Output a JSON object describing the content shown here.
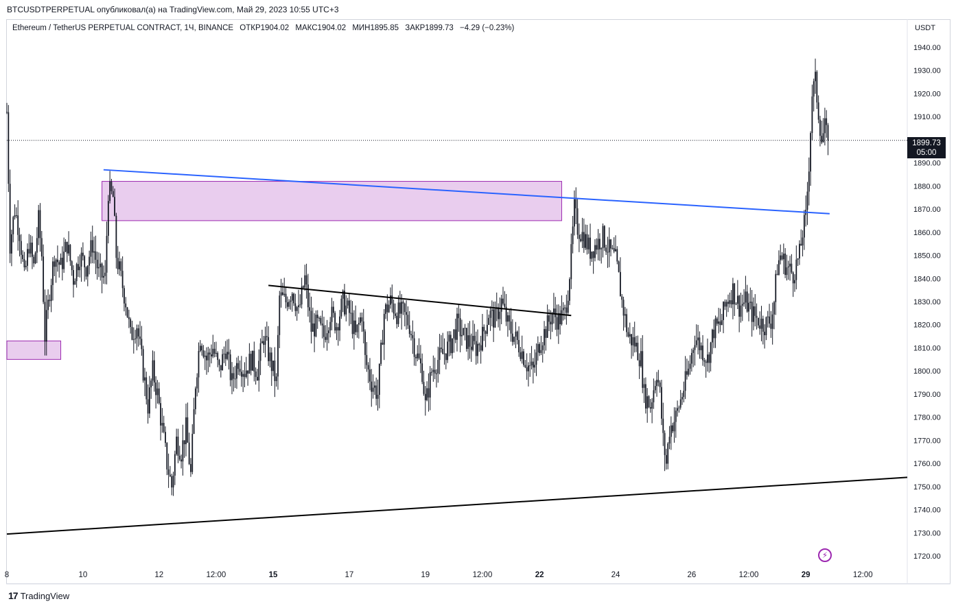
{
  "header": {
    "published": "BTCUSDTPERPETUAL опубликовал(а) на TradingView.com, Май 29, 2023 10:55 UTC+3"
  },
  "legend": {
    "symbol": "Ethereum / TetherUS PERPETUAL CONTRACT, 1Ч, BINANCE",
    "open": "ОТКР1904.02",
    "high": "МАКС1904.02",
    "low": "МИН1895.85",
    "close": "ЗАКР1899.73",
    "change": "−4.29 (−0.23%)"
  },
  "price_badge": {
    "price": "1899.73",
    "countdown": "05:00"
  },
  "footer": {
    "brand": "TradingView"
  },
  "colors": {
    "candle": "#131722",
    "trend_blue": "#2962ff",
    "zone_fill": "#e9cdee",
    "zone_border": "#9c27b0"
  },
  "chart_data": {
    "type": "candlestick",
    "currency_label": "USDT",
    "ylim": [
      1715,
      1945
    ],
    "y_ticks": [
      "1720.00",
      "1730.00",
      "1740.00",
      "1750.00",
      "1760.00",
      "1770.00",
      "1780.00",
      "1790.00",
      "1800.00",
      "1810.00",
      "1820.00",
      "1830.00",
      "1840.00",
      "1850.00",
      "1860.00",
      "1870.00",
      "1880.00",
      "1890.00",
      "1900.00",
      "1910.00",
      "1920.00",
      "1930.00",
      "1940.00"
    ],
    "x_ticks": [
      {
        "label": "8",
        "t": 0,
        "bold": false
      },
      {
        "label": "10",
        "t": 48,
        "bold": false
      },
      {
        "label": "12",
        "t": 96,
        "bold": false
      },
      {
        "label": "12:00",
        "t": 132,
        "bold": false
      },
      {
        "label": "15",
        "t": 168,
        "bold": true
      },
      {
        "label": "17",
        "t": 216,
        "bold": false
      },
      {
        "label": "19",
        "t": 264,
        "bold": false
      },
      {
        "label": "12:00",
        "t": 300,
        "bold": false
      },
      {
        "label": "22",
        "t": 336,
        "bold": true
      },
      {
        "label": "24",
        "t": 384,
        "bold": false
      },
      {
        "label": "26",
        "t": 432,
        "bold": false
      },
      {
        "label": "12:00",
        "t": 468,
        "bold": false
      },
      {
        "label": "29",
        "t": 504,
        "bold": true
      },
      {
        "label": "12:00",
        "t": 540,
        "bold": false
      }
    ],
    "t_range": [
      0,
      568
    ],
    "last_price": 1899.73,
    "price_path": [
      [
        0,
        1912
      ],
      [
        2,
        1855
      ],
      [
        5,
        1870
      ],
      [
        8,
        1860
      ],
      [
        11,
        1840
      ],
      [
        14,
        1855
      ],
      [
        17,
        1845
      ],
      [
        20,
        1865
      ],
      [
        22,
        1850
      ],
      [
        24,
        1815
      ],
      [
        27,
        1835
      ],
      [
        30,
        1850
      ],
      [
        34,
        1845
      ],
      [
        38,
        1855
      ],
      [
        42,
        1840
      ],
      [
        46,
        1850
      ],
      [
        50,
        1845
      ],
      [
        54,
        1855
      ],
      [
        58,
        1842
      ],
      [
        62,
        1840
      ],
      [
        64,
        1878
      ],
      [
        67,
        1875
      ],
      [
        69,
        1850
      ],
      [
        72,
        1840
      ],
      [
        75,
        1830
      ],
      [
        78,
        1815
      ],
      [
        82,
        1820
      ],
      [
        86,
        1800
      ],
      [
        89,
        1785
      ],
      [
        92,
        1800
      ],
      [
        95,
        1790
      ],
      [
        98,
        1775
      ],
      [
        101,
        1760
      ],
      [
        104,
        1750
      ],
      [
        107,
        1770
      ],
      [
        110,
        1765
      ],
      [
        113,
        1775
      ],
      [
        116,
        1755
      ],
      [
        119,
        1795
      ],
      [
        122,
        1815
      ],
      [
        126,
        1805
      ],
      [
        130,
        1810
      ],
      [
        134,
        1800
      ],
      [
        138,
        1810
      ],
      [
        142,
        1795
      ],
      [
        146,
        1805
      ],
      [
        150,
        1800
      ],
      [
        154,
        1805
      ],
      [
        158,
        1800
      ],
      [
        162,
        1815
      ],
      [
        166,
        1805
      ],
      [
        170,
        1795
      ],
      [
        172,
        1832
      ],
      [
        176,
        1830
      ],
      [
        180,
        1835
      ],
      [
        184,
        1825
      ],
      [
        188,
        1840
      ],
      [
        192,
        1818
      ],
      [
        196,
        1820
      ],
      [
        200,
        1815
      ],
      [
        204,
        1825
      ],
      [
        208,
        1820
      ],
      [
        212,
        1830
      ],
      [
        216,
        1825
      ],
      [
        220,
        1815
      ],
      [
        224,
        1825
      ],
      [
        226,
        1805
      ],
      [
        230,
        1795
      ],
      [
        234,
        1790
      ],
      [
        238,
        1825
      ],
      [
        242,
        1830
      ],
      [
        246,
        1825
      ],
      [
        250,
        1825
      ],
      [
        254,
        1820
      ],
      [
        258,
        1808
      ],
      [
        262,
        1800
      ],
      [
        264,
        1785
      ],
      [
        268,
        1800
      ],
      [
        272,
        1805
      ],
      [
        276,
        1808
      ],
      [
        280,
        1812
      ],
      [
        284,
        1820
      ],
      [
        288,
        1815
      ],
      [
        292,
        1812
      ],
      [
        296,
        1810
      ],
      [
        300,
        1815
      ],
      [
        304,
        1825
      ],
      [
        308,
        1822
      ],
      [
        312,
        1830
      ],
      [
        316,
        1820
      ],
      [
        320,
        1815
      ],
      [
        324,
        1810
      ],
      [
        328,
        1803
      ],
      [
        332,
        1800
      ],
      [
        336,
        1812
      ],
      [
        340,
        1818
      ],
      [
        344,
        1825
      ],
      [
        348,
        1822
      ],
      [
        352,
        1825
      ],
      [
        354,
        1835
      ],
      [
        356,
        1850
      ],
      [
        358,
        1870
      ],
      [
        360,
        1862
      ],
      [
        364,
        1858
      ],
      [
        368,
        1852
      ],
      [
        372,
        1855
      ],
      [
        376,
        1858
      ],
      [
        380,
        1852
      ],
      [
        384,
        1848
      ],
      [
        386,
        1840
      ],
      [
        388,
        1830
      ],
      [
        392,
        1815
      ],
      [
        396,
        1812
      ],
      [
        400,
        1805
      ],
      [
        402,
        1790
      ],
      [
        406,
        1785
      ],
      [
        410,
        1800
      ],
      [
        412,
        1790
      ],
      [
        414,
        1770
      ],
      [
        416,
        1760
      ],
      [
        418,
        1775
      ],
      [
        422,
        1780
      ],
      [
        426,
        1790
      ],
      [
        430,
        1800
      ],
      [
        434,
        1815
      ],
      [
        438,
        1810
      ],
      [
        442,
        1805
      ],
      [
        446,
        1818
      ],
      [
        450,
        1820
      ],
      [
        454,
        1830
      ],
      [
        458,
        1835
      ],
      [
        462,
        1828
      ],
      [
        466,
        1830
      ],
      [
        470,
        1825
      ],
      [
        474,
        1822
      ],
      [
        478,
        1820
      ],
      [
        482,
        1822
      ],
      [
        484,
        1830
      ],
      [
        486,
        1845
      ],
      [
        488,
        1850
      ],
      [
        492,
        1845
      ],
      [
        496,
        1842
      ],
      [
        500,
        1850
      ],
      [
        502,
        1860
      ],
      [
        504,
        1866
      ],
      [
        506,
        1890
      ],
      [
        508,
        1920
      ],
      [
        510,
        1925
      ],
      [
        512,
        1912
      ],
      [
        514,
        1900
      ],
      [
        516,
        1905
      ],
      [
        518,
        1898
      ]
    ],
    "annotations": {
      "zones": [
        {
          "t1": 60,
          "t2": 350,
          "y1": 1865,
          "y2": 1882
        },
        {
          "t1": 0,
          "t2": 34,
          "y1": 1805,
          "y2": 1813
        }
      ],
      "lines": [
        {
          "color": "blue",
          "t1": 61,
          "y1": 1887,
          "t2": 519,
          "y2": 1868
        },
        {
          "color": "black",
          "t1": 165,
          "y1": 1837,
          "t2": 356,
          "y2": 1824
        },
        {
          "color": "black",
          "t1": 0,
          "y1": 1729.5,
          "t2": 568,
          "y2": 1754
        }
      ]
    }
  }
}
